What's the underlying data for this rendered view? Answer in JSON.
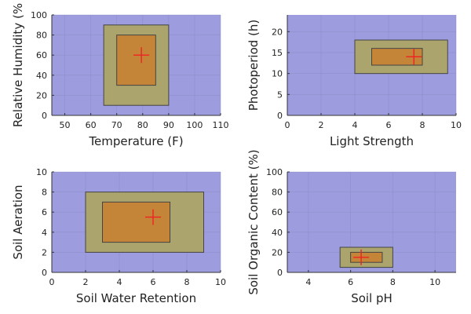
{
  "colors": {
    "background_region": "#9c9cde",
    "tolerable_region": "#aca46d",
    "optimal_region": "#c58538",
    "region_border": "#444444",
    "marker": "#ee2222",
    "axis": "#333333",
    "grid": "#8a8ac4"
  },
  "chart_data": [
    {
      "type": "rectangle-range",
      "xlabel": "Temperature (F)",
      "ylabel": "Relative Humidity (%",
      "xlim": [
        45,
        110
      ],
      "ylim": [
        0,
        100
      ],
      "xticks": [
        50,
        60,
        70,
        80,
        90,
        100,
        110
      ],
      "yticks": [
        0,
        20,
        40,
        60,
        80,
        100
      ],
      "grid": true,
      "tolerable_range": {
        "x": [
          65,
          90
        ],
        "y": [
          10,
          90
        ]
      },
      "optimal_range": {
        "x": [
          70,
          85
        ],
        "y": [
          30,
          80
        ]
      },
      "marker": {
        "x": 79.5,
        "y": 60
      }
    },
    {
      "type": "rectangle-range",
      "xlabel": "Light Strength",
      "ylabel": "Photoperiod (h)",
      "xlim": [
        0,
        10
      ],
      "ylim": [
        0,
        24
      ],
      "xticks": [
        0,
        2,
        4,
        6,
        8,
        10
      ],
      "yticks": [
        0,
        5,
        10,
        15,
        20
      ],
      "grid": true,
      "tolerable_range": {
        "x": [
          4,
          9.5
        ],
        "y": [
          10,
          18
        ]
      },
      "optimal_range": {
        "x": [
          5,
          8
        ],
        "y": [
          12,
          16
        ]
      },
      "marker": {
        "x": 7.5,
        "y": 14
      }
    },
    {
      "type": "rectangle-range",
      "xlabel": "Soil Water Retention",
      "ylabel": "Soil Aeration",
      "xlim": [
        0,
        10
      ],
      "ylim": [
        0,
        10
      ],
      "xticks": [
        0,
        2,
        4,
        6,
        8,
        10
      ],
      "yticks": [
        0,
        2,
        4,
        6,
        8,
        10
      ],
      "grid": true,
      "tolerable_range": {
        "x": [
          2,
          9
        ],
        "y": [
          2,
          8
        ]
      },
      "optimal_range": {
        "x": [
          3,
          7
        ],
        "y": [
          3,
          7
        ]
      },
      "marker": {
        "x": 6,
        "y": 5.5
      }
    },
    {
      "type": "rectangle-range",
      "xlabel": "Soil pH",
      "ylabel": "Soil Organic Content (%)",
      "xlim": [
        3,
        11
      ],
      "ylim": [
        0,
        100
      ],
      "xticks": [
        4,
        6,
        8,
        10
      ],
      "yticks": [
        0,
        20,
        40,
        60,
        80,
        100
      ],
      "grid": true,
      "tolerable_range": {
        "x": [
          5.5,
          8
        ],
        "y": [
          5,
          25
        ]
      },
      "optimal_range": {
        "x": [
          6,
          7.5
        ],
        "y": [
          10,
          20
        ]
      },
      "marker": {
        "x": 6.5,
        "y": 15
      }
    }
  ]
}
